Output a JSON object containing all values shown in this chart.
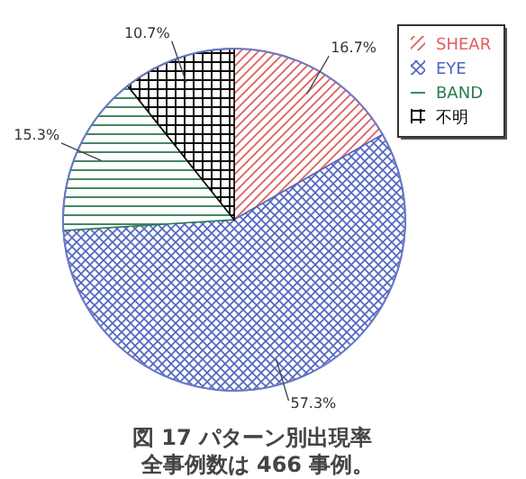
{
  "chart_data": {
    "type": "pie",
    "title": "図 17 パターン別出現率",
    "subtitle": "全事例数は 466 事例。",
    "categories": [
      "SHEAR",
      "EYE",
      "BAND",
      "不明"
    ],
    "values": [
      16.7,
      57.3,
      15.3,
      10.7
    ],
    "value_labels": [
      "16.7%",
      "57.3%",
      "15.3%",
      "10.7%"
    ],
    "colors": [
      "#e06060",
      "#5064c0",
      "#2e7a4e",
      "#000000"
    ],
    "legend": "top right"
  }
}
